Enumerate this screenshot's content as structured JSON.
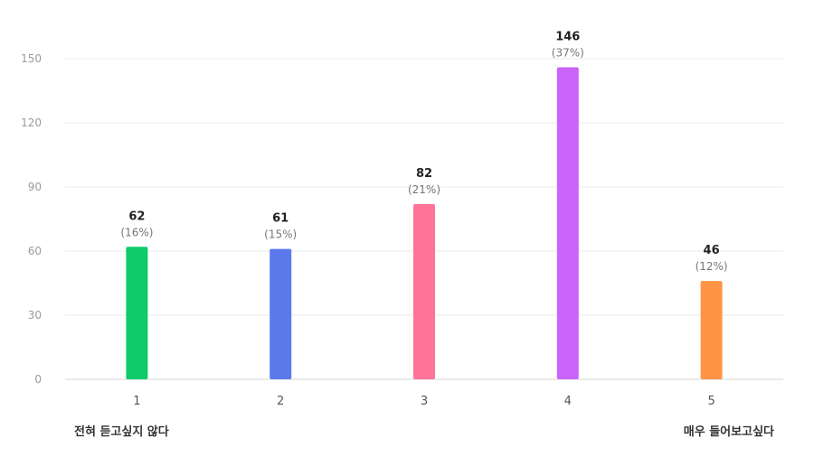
{
  "chart_data": {
    "type": "bar",
    "title": "",
    "xlabel": "",
    "ylabel": "",
    "categories": [
      "1",
      "2",
      "3",
      "4",
      "5"
    ],
    "values": [
      62,
      61,
      82,
      146,
      46
    ],
    "percent_labels": [
      "(16%)",
      "(15%)",
      "(21%)",
      "(37%)",
      "(12%)"
    ],
    "colors": [
      "#0fcb68",
      "#5b79eb",
      "#ff7397",
      "#c964fa",
      "#ff9447"
    ],
    "ylim": [
      0,
      150
    ],
    "yticks": [
      "0",
      "30",
      "60",
      "90",
      "120",
      "150"
    ],
    "grid": true,
    "legend": "none"
  },
  "scale_anchors": {
    "min_label": "전혀 듣고싶지 않다",
    "max_label": "매우 들어보고싶다"
  }
}
